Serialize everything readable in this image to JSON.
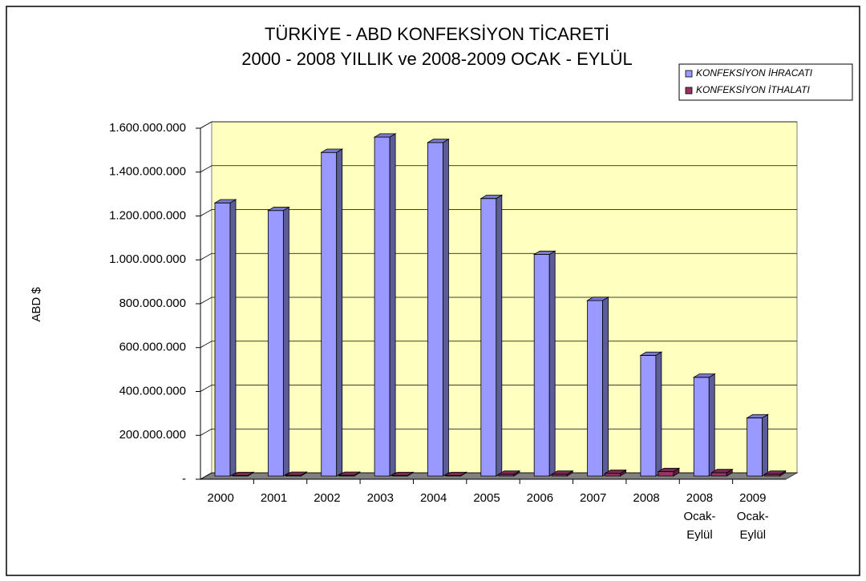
{
  "chart_data": {
    "type": "bar3d",
    "title": "TÜRKİYE - ABD KONFEKSİYON TİCARETİ",
    "subtitle": "2000 - 2008 YILLIK ve 2008-2009 OCAK - EYLÜL",
    "ylabel": "ABD $",
    "categories": [
      "2000",
      "2001",
      "2002",
      "2003",
      "2004",
      "2005",
      "2006",
      "2007",
      "2008",
      "2008 Ocak-Eylül",
      "2009 Ocak-Eylül"
    ],
    "series": [
      {
        "name": "KONFEKSİYON İHRACATI",
        "color": "#9999ff",
        "values": [
          1245000000,
          1210000000,
          1475000000,
          1545000000,
          1520000000,
          1265000000,
          1010000000,
          800000000,
          550000000,
          450000000,
          265000000
        ]
      },
      {
        "name": "KONFEKSİYON İTHALATI",
        "color": "#993366",
        "values": [
          2000000,
          3000000,
          3000000,
          2000000,
          2000000,
          8000000,
          8000000,
          12000000,
          20000000,
          15000000,
          8000000
        ]
      }
    ],
    "ylim": [
      0,
      1600000000
    ],
    "yticks": [
      {
        "value": 0,
        "label": "-"
      },
      {
        "value": 200000000,
        "label": "200.000.000"
      },
      {
        "value": 400000000,
        "label": "400.000.000"
      },
      {
        "value": 600000000,
        "label": "600.000.000"
      },
      {
        "value": 800000000,
        "label": "800.000.000"
      },
      {
        "value": 1000000000,
        "label": "1.000.000.000"
      },
      {
        "value": 1200000000,
        "label": "1.200.000.000"
      },
      {
        "value": 1400000000,
        "label": "1.400.000.000"
      },
      {
        "value": 1600000000,
        "label": "1.600.000.000"
      }
    ],
    "grid": true,
    "legend": "top-right",
    "wall_color": "#ffffc0"
  }
}
